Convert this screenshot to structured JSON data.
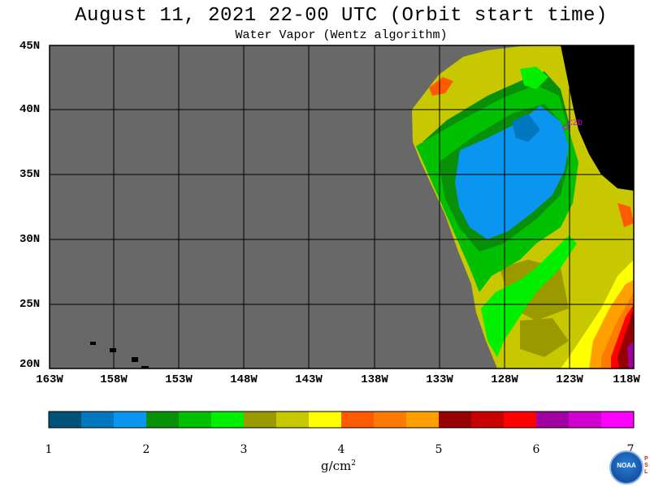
{
  "title": "August 11, 2021  22-00 UTC  (Orbit start time)",
  "subtitle": "Water Vapor (Wentz algorithm)",
  "lat_labels": [
    "45N",
    "40N",
    "35N",
    "30N",
    "25N",
    "20N"
  ],
  "lon_labels": [
    "163W",
    "158W",
    "153W",
    "148W",
    "143W",
    "138W",
    "133W",
    "128W",
    "123W",
    "118W"
  ],
  "station_label": "CZD",
  "colorbar": {
    "ticks": [
      "1",
      "2",
      "3",
      "4",
      "5",
      "6",
      "7"
    ],
    "units_base": "g/cm",
    "units_exp": "2",
    "colors": [
      "#00527a",
      "#0078c0",
      "#0a96f0",
      "#089008",
      "#00c000",
      "#00f000",
      "#9a9a00",
      "#c8c800",
      "#ffff00",
      "#ff5a00",
      "#ff7a00",
      "#ffa000",
      "#960000",
      "#c80000",
      "#ff0000",
      "#a000a0",
      "#d000d0",
      "#ff00ff"
    ]
  },
  "logo": {
    "text": "NOAA",
    "side_text": "PSL"
  },
  "map_colors": {
    "no_data": "#686868",
    "land": "#000000",
    "grid": "#000000",
    "station": "#e000e0"
  }
}
